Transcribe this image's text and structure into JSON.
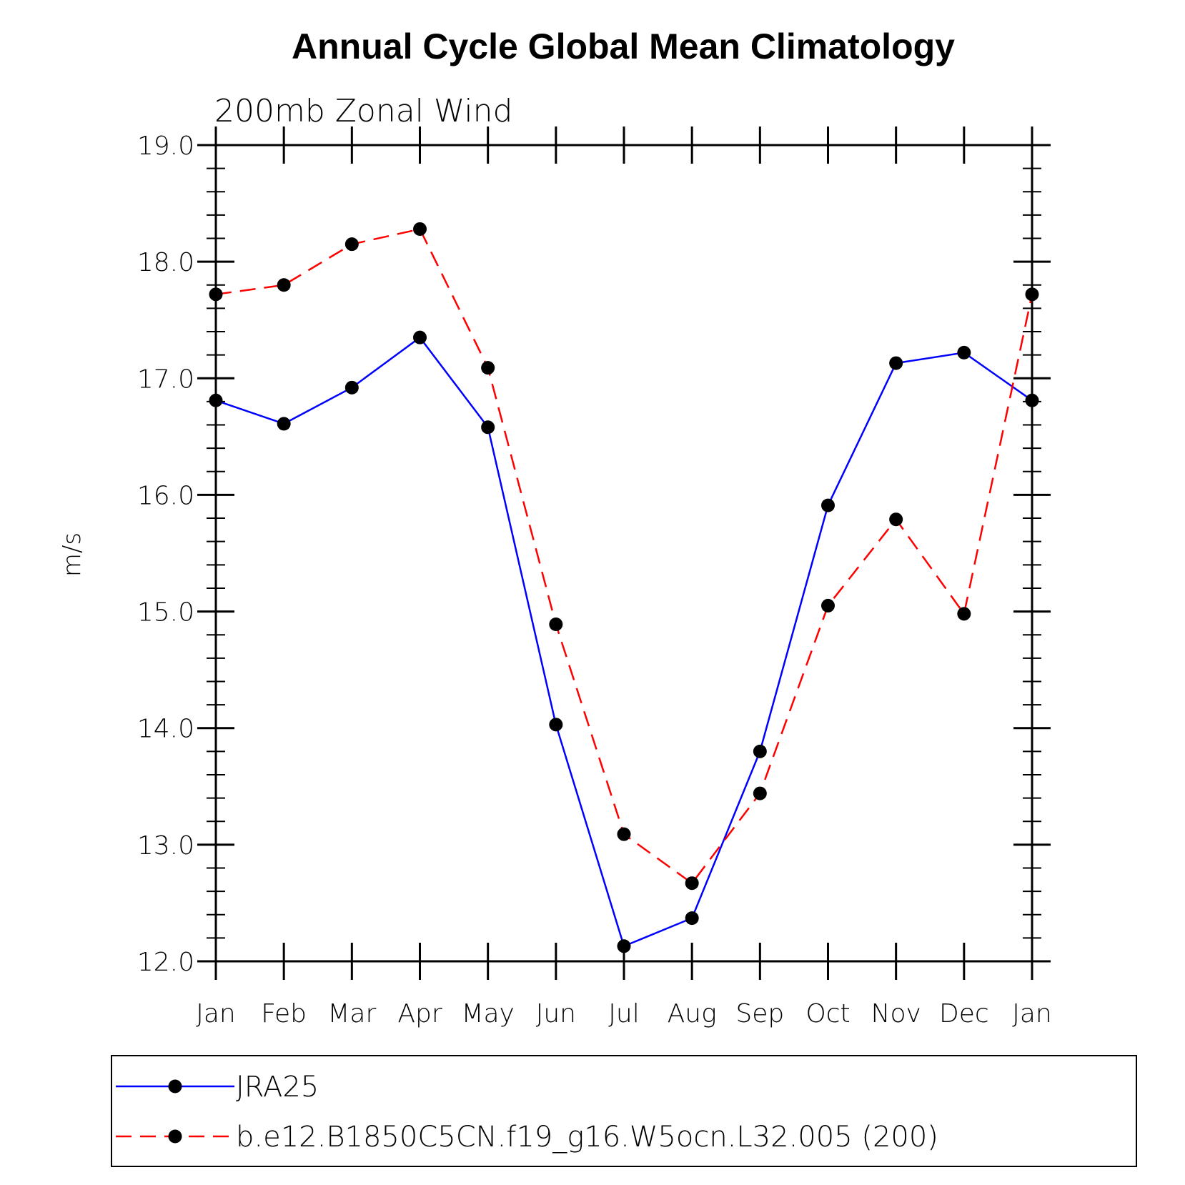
{
  "chart_data": {
    "type": "line",
    "title": "Annual Cycle Global Mean Climatology",
    "subtitle": "200mb Zonal Wind",
    "xlabel": "",
    "ylabel": "m/s",
    "categories": [
      "Jan",
      "Feb",
      "Mar",
      "Apr",
      "May",
      "Jun",
      "Jul",
      "Aug",
      "Sep",
      "Oct",
      "Nov",
      "Dec",
      "Jan"
    ],
    "ylim": [
      12.0,
      19.0
    ],
    "yticks": [
      "12.0",
      "13.0",
      "14.0",
      "15.0",
      "16.0",
      "17.0",
      "18.0",
      "19.0"
    ],
    "grid": false,
    "legend_position": "bottom",
    "series": [
      {
        "name": "JRA25",
        "color": "#0000ff",
        "dash": "solid",
        "marker": "filled-circle",
        "values": [
          16.81,
          16.61,
          16.92,
          17.35,
          16.58,
          14.03,
          12.13,
          12.37,
          13.8,
          15.91,
          17.13,
          17.22,
          16.81
        ]
      },
      {
        "name": "b.e12.B1850C5CN.f19_g16.W5ocn.L32.005 (200)",
        "color": "#ff0000",
        "dash": "dashed",
        "marker": "filled-circle",
        "values": [
          17.72,
          17.8,
          18.15,
          18.28,
          17.09,
          14.89,
          13.09,
          12.67,
          13.44,
          15.05,
          15.79,
          14.98,
          17.72
        ]
      }
    ]
  }
}
